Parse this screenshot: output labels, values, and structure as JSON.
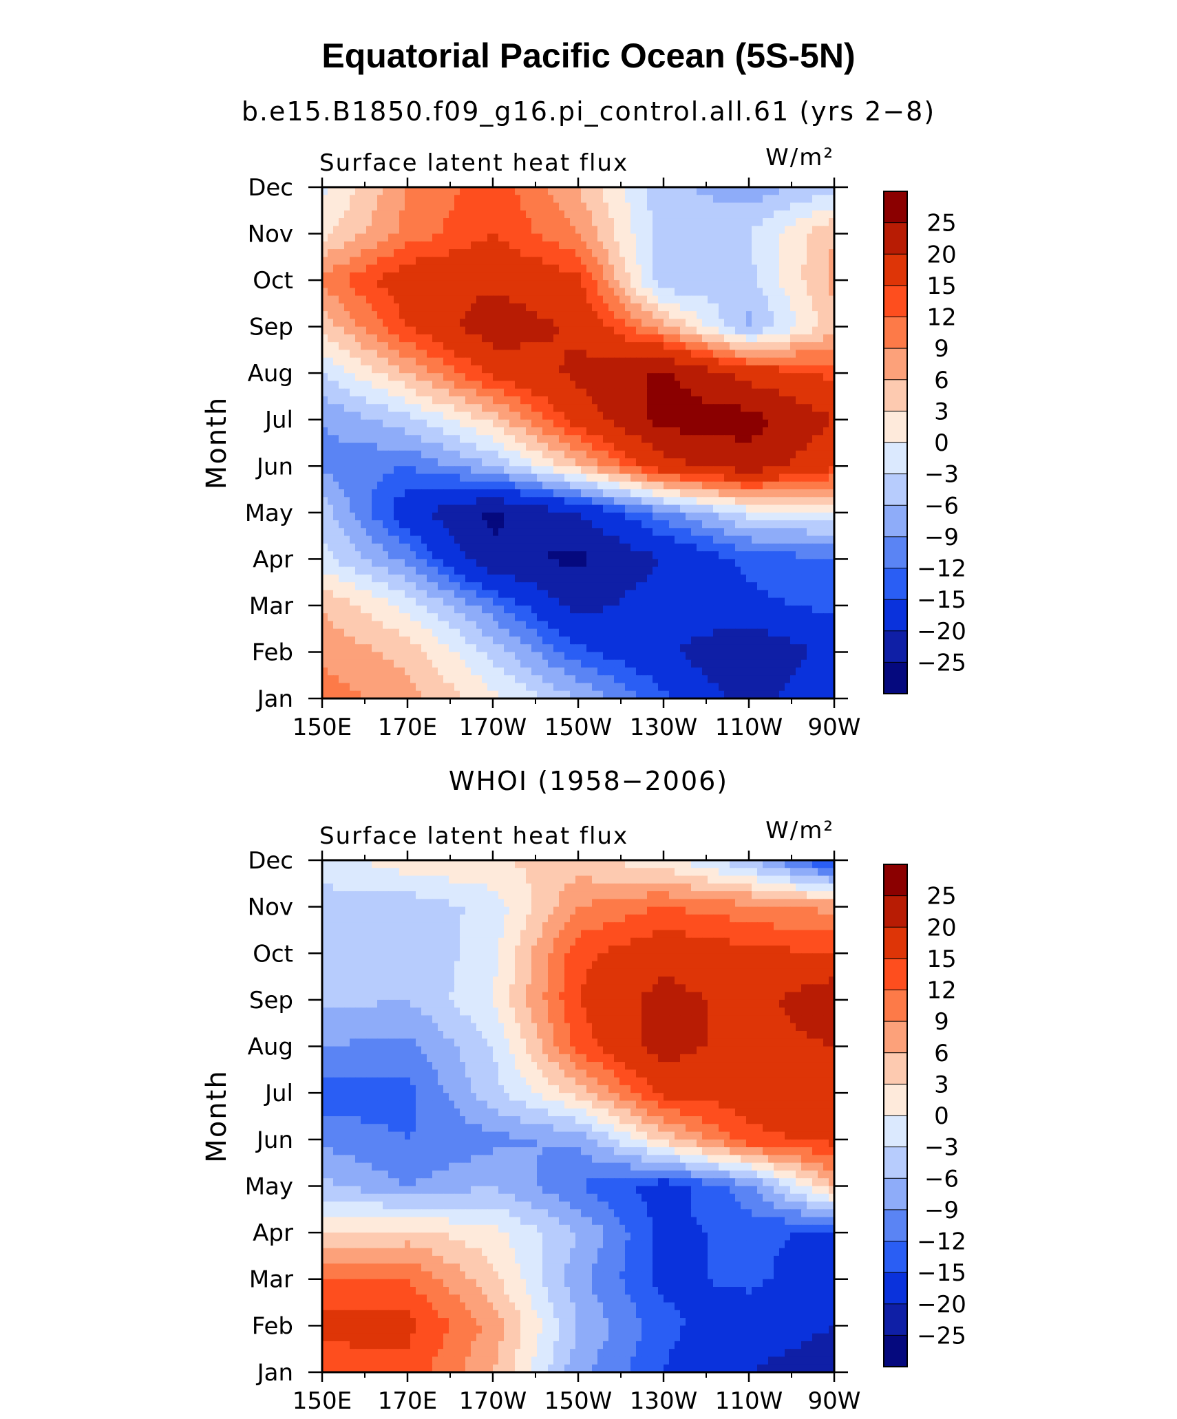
{
  "figure": {
    "title": "Equatorial Pacific Ocean (5S-5N)"
  },
  "legend": {
    "levels": [
      25,
      20,
      15,
      12,
      9,
      6,
      3,
      0,
      -3,
      -6,
      -9,
      -12,
      -15,
      -20,
      -25
    ],
    "level_labels": [
      "25",
      "20",
      "15",
      "12",
      "9",
      "6",
      "3",
      "0",
      "−3",
      "−6",
      "−9",
      "−12",
      "−15",
      "−20",
      "−25"
    ],
    "colors": [
      "#8b0000",
      "#b81c04",
      "#de3507",
      "#fe4e1e",
      "#fd7a48",
      "#fca17a",
      "#fdcab0",
      "#feeadb",
      "#dbe9fe",
      "#b7ccfd",
      "#8eacf9",
      "#5a84f4",
      "#2a5ef4",
      "#0a32dc",
      "#0f1fa6",
      "#05097e"
    ]
  },
  "chart_data": [
    {
      "type": "heatmap",
      "title": "b.e15.B1850.f09_g16.pi_control.all.61 (yrs 2−8)",
      "left_label": "Surface latent heat flux",
      "units": "W/m²",
      "ylabel": "Month",
      "x_ticks": [
        "150E",
        "170E",
        "170W",
        "150W",
        "130W",
        "110W",
        "90W"
      ],
      "x_tick_values": [
        150,
        170,
        190,
        210,
        230,
        250,
        270
      ],
      "y_ticks": [
        "Jan",
        "Feb",
        "Mar",
        "Apr",
        "May",
        "Jun",
        "Jul",
        "Aug",
        "Sep",
        "Oct",
        "Nov",
        "Dec"
      ],
      "xlim": [
        150,
        270
      ],
      "ylim": [
        1,
        12
      ],
      "x_nodes": [
        150,
        170,
        190,
        210,
        230,
        250,
        270
      ],
      "z": [
        [
          11,
          7,
          1,
          -6,
          -14,
          -22,
          -16
        ],
        [
          8,
          5,
          -4,
          -14,
          -19,
          -25,
          -18
        ],
        [
          6,
          -1,
          -11,
          -22,
          -17,
          -16,
          -14
        ],
        [
          -2,
          -10,
          -24,
          -26,
          -20,
          -14,
          -12
        ],
        [
          -4,
          -18,
          -26,
          -20,
          -10,
          -2,
          -1
        ],
        [
          -10,
          -12,
          -6,
          5,
          18,
          23,
          16
        ],
        [
          -9,
          -4,
          4,
          17,
          27,
          27,
          20
        ],
        [
          -3,
          6,
          16,
          21,
          26,
          18,
          14
        ],
        [
          4,
          15,
          23,
          19,
          7,
          -7,
          5
        ],
        [
          10,
          18,
          19,
          16,
          -6,
          -4,
          7
        ],
        [
          2,
          10,
          15,
          9,
          -5,
          -3,
          6
        ],
        [
          -1,
          9,
          14,
          6,
          -5,
          -8,
          -4
        ]
      ]
    },
    {
      "type": "heatmap",
      "title": "WHOI (1958−2006)",
      "left_label": "Surface latent heat flux",
      "units": "W/m²",
      "ylabel": "Month",
      "x_ticks": [
        "150E",
        "170E",
        "170W",
        "150W",
        "130W",
        "110W",
        "90W"
      ],
      "x_tick_values": [
        150,
        170,
        190,
        210,
        230,
        250,
        270
      ],
      "y_ticks": [
        "Jan",
        "Feb",
        "Mar",
        "Apr",
        "May",
        "Jun",
        "Jul",
        "Aug",
        "Sep",
        "Oct",
        "Nov",
        "Dec"
      ],
      "xlim": [
        150,
        270
      ],
      "ylim": [
        1,
        12
      ],
      "x_nodes": [
        150,
        170,
        190,
        210,
        230,
        250,
        270
      ],
      "z": [
        [
          12,
          14,
          6,
          -8,
          -15,
          -20,
          -22
        ],
        [
          17,
          16,
          8,
          -6,
          -14,
          -18,
          -20
        ],
        [
          12,
          12,
          4,
          -8,
          -16,
          -14,
          -18
        ],
        [
          3,
          4,
          1,
          -6,
          -16,
          -14,
          -16
        ],
        [
          -5,
          -9,
          -6,
          -12,
          -17,
          -10,
          6
        ],
        [
          -10,
          -12,
          -10,
          -8,
          4,
          14,
          16
        ],
        [
          -14,
          -13,
          -4,
          4,
          16,
          17,
          18
        ],
        [
          -9,
          -10,
          -3,
          13,
          22,
          18,
          20
        ],
        [
          -5,
          -6,
          0,
          15,
          22,
          18,
          24
        ],
        [
          -3,
          -6,
          -1,
          14,
          18,
          16,
          15
        ],
        [
          -4,
          -5,
          -2,
          9,
          12,
          10,
          8
        ],
        [
          -2,
          2,
          3,
          4,
          1,
          -6,
          -17
        ]
      ]
    }
  ]
}
